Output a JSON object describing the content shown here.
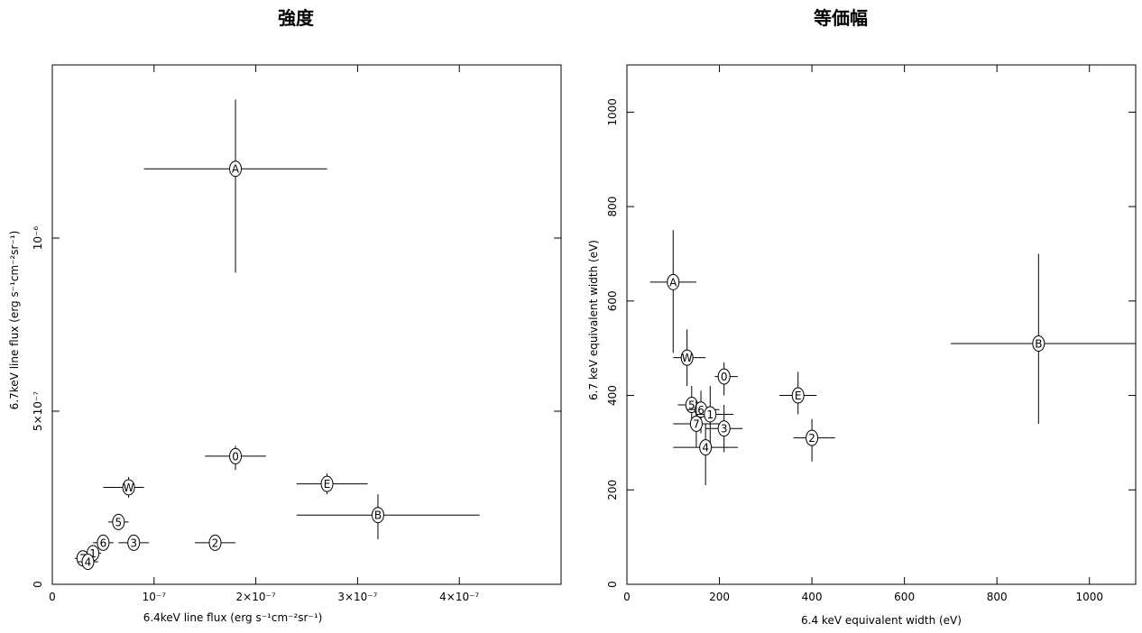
{
  "chart_data": [
    {
      "type": "scatter",
      "title": "強度",
      "xlabel": "6.4keV line flux (erg s⁻¹cm⁻²sr⁻¹)",
      "ylabel": "6.7keV line flux (erg s⁻¹cm⁻²sr⁻¹)",
      "xlim": [
        0,
        5e-07
      ],
      "ylim": [
        0,
        1.5e-06
      ],
      "x_ticks": [
        0,
        1e-07,
        2e-07,
        3e-07,
        4e-07
      ],
      "x_tick_labels": [
        "0",
        "10⁻⁷",
        "2×10⁻⁷",
        "3×10⁻⁷",
        "4×10⁻⁷"
      ],
      "y_ticks": [
        0,
        5e-07,
        1e-06
      ],
      "y_tick_labels": [
        "0",
        "5×10⁻⁷",
        "10⁻⁶"
      ],
      "grid": false,
      "points": [
        {
          "label": "A",
          "x": 1.8e-07,
          "y": 1.2e-06,
          "xlo": 9e-08,
          "xhi": 2.7e-07,
          "ylo": 9e-07,
          "yhi": 1.4e-06
        },
        {
          "label": "0",
          "x": 1.8e-07,
          "y": 3.7e-07,
          "xlo": 1.5e-07,
          "xhi": 2.1e-07,
          "ylo": 3.3e-07,
          "yhi": 4e-07
        },
        {
          "label": "E",
          "x": 2.7e-07,
          "y": 2.9e-07,
          "xlo": 2.4e-07,
          "xhi": 3.1e-07,
          "ylo": 2.6e-07,
          "yhi": 3.2e-07
        },
        {
          "label": "B",
          "x": 3.2e-07,
          "y": 2e-07,
          "xlo": 2.4e-07,
          "xhi": 4.2e-07,
          "ylo": 1.3e-07,
          "yhi": 2.6e-07
        },
        {
          "label": "W",
          "x": 7.5e-08,
          "y": 2.8e-07,
          "xlo": 5e-08,
          "xhi": 9e-08,
          "ylo": 2.5e-07,
          "yhi": 3.1e-07
        },
        {
          "label": "5",
          "x": 6.5e-08,
          "y": 1.8e-07,
          "xlo": 5.5e-08,
          "xhi": 7.5e-08,
          "ylo": 1.6e-07,
          "yhi": 2e-07
        },
        {
          "label": "6",
          "x": 5e-08,
          "y": 1.2e-07,
          "xlo": 4e-08,
          "xhi": 6e-08,
          "ylo": 1e-07,
          "yhi": 1.4e-07
        },
        {
          "label": "3",
          "x": 8e-08,
          "y": 1.2e-07,
          "xlo": 6.5e-08,
          "xhi": 9.5e-08,
          "ylo": 1e-07,
          "yhi": 1.4e-07
        },
        {
          "label": "2",
          "x": 1.6e-07,
          "y": 1.2e-07,
          "xlo": 1.4e-07,
          "xhi": 1.8e-07,
          "ylo": 1.05e-07,
          "yhi": 1.35e-07
        },
        {
          "label": "1",
          "x": 4e-08,
          "y": 9e-08,
          "xlo": 3.2e-08,
          "xhi": 4.8e-08,
          "ylo": 7.5e-08,
          "yhi": 1.05e-07
        },
        {
          "label": "7",
          "x": 3e-08,
          "y": 7.5e-08,
          "xlo": 2.2e-08,
          "xhi": 3.8e-08,
          "ylo": 6e-08,
          "yhi": 9e-08
        },
        {
          "label": "4",
          "x": 3.5e-08,
          "y": 6.5e-08,
          "xlo": 2.5e-08,
          "xhi": 4.5e-08,
          "ylo": 5e-08,
          "yhi": 8e-08
        }
      ]
    },
    {
      "type": "scatter",
      "title": "等価幅",
      "xlabel": "6.4 keV equivalent width (eV)",
      "ylabel": "6.7 keV equivalent width (eV)",
      "xlim": [
        0,
        1100
      ],
      "ylim": [
        0,
        1100
      ],
      "x_ticks": [
        0,
        200,
        400,
        600,
        800,
        1000
      ],
      "x_tick_labels": [
        "0",
        "200",
        "400",
        "600",
        "800",
        "1000"
      ],
      "y_ticks": [
        0,
        200,
        400,
        600,
        800,
        1000
      ],
      "y_tick_labels": [
        "0",
        "200",
        "400",
        "600",
        "800",
        "1000"
      ],
      "grid": false,
      "points": [
        {
          "label": "A",
          "x": 100,
          "y": 640,
          "xlo": 50,
          "xhi": 150,
          "ylo": 490,
          "yhi": 750
        },
        {
          "label": "W",
          "x": 130,
          "y": 480,
          "xlo": 100,
          "xhi": 170,
          "ylo": 420,
          "yhi": 540
        },
        {
          "label": "0",
          "x": 210,
          "y": 440,
          "xlo": 190,
          "xhi": 240,
          "ylo": 400,
          "yhi": 470
        },
        {
          "label": "E",
          "x": 370,
          "y": 400,
          "xlo": 330,
          "xhi": 410,
          "ylo": 360,
          "yhi": 450
        },
        {
          "label": "B",
          "x": 890,
          "y": 510,
          "xlo": 700,
          "xhi": 1100,
          "ylo": 340,
          "yhi": 700
        },
        {
          "label": "5",
          "x": 140,
          "y": 380,
          "xlo": 110,
          "xhi": 170,
          "ylo": 340,
          "yhi": 420
        },
        {
          "label": "6",
          "x": 160,
          "y": 370,
          "xlo": 130,
          "xhi": 200,
          "ylo": 320,
          "yhi": 410
        },
        {
          "label": "1",
          "x": 180,
          "y": 360,
          "xlo": 150,
          "xhi": 230,
          "ylo": 300,
          "yhi": 420
        },
        {
          "label": "7",
          "x": 150,
          "y": 340,
          "xlo": 100,
          "xhi": 200,
          "ylo": 290,
          "yhi": 390
        },
        {
          "label": "3",
          "x": 210,
          "y": 330,
          "xlo": 170,
          "xhi": 250,
          "ylo": 280,
          "yhi": 380
        },
        {
          "label": "2",
          "x": 400,
          "y": 310,
          "xlo": 360,
          "xhi": 450,
          "ylo": 260,
          "yhi": 350
        },
        {
          "label": "4",
          "x": 170,
          "y": 290,
          "xlo": 100,
          "xhi": 240,
          "ylo": 210,
          "yhi": 340
        }
      ]
    }
  ]
}
